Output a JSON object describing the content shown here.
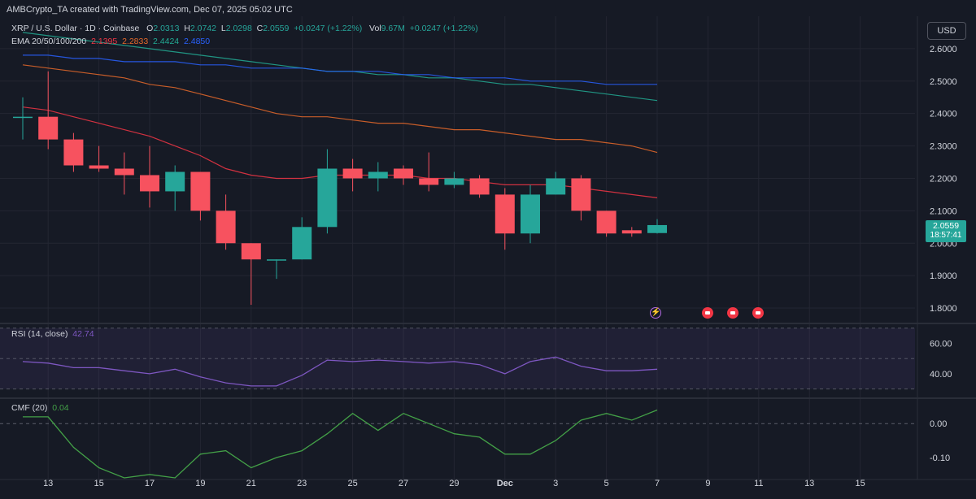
{
  "header": {
    "credit": "AMBCrypto_TA created with TradingView.com, Dec 07, 2025 05:02 UTC",
    "symbol": "XRP / U.S. Dollar · 1D · Coinbase",
    "open_label": "O",
    "open": "2.0313",
    "high_label": "H",
    "high": "2.0742",
    "low_label": "L",
    "low": "2.0298",
    "close_label": "C",
    "close": "2.0559",
    "change": "+0.0247 (+1.22%)",
    "vol_label": "Vol",
    "vol": "9.67M",
    "vol_change": "+0.0247 (+1.22%)",
    "ema_label": "EMA 20/50/100/200",
    "ema20": "2.1395",
    "ema50": "2.2833",
    "ema100": "2.4424",
    "ema200": "2.4850",
    "currency_button": "USD"
  },
  "colors": {
    "up": "#26A69A",
    "down": "#F7525F",
    "ema20": "#F23645",
    "ema50": "#E86A2A",
    "ema100": "#22AB94",
    "ema200": "#2962FF",
    "rsi": "#7E57C2",
    "cmf": "#43A047",
    "background": "#161A25",
    "grid": "#232632"
  },
  "price_tag": {
    "price": "2.0559",
    "countdown": "18:57:41"
  },
  "events": [
    "split-icon",
    "flag-icon",
    "flag-icon",
    "flag-icon"
  ],
  "chart_data": {
    "type": "candlestick",
    "price_axis_ticks": [
      "2.6000",
      "2.5000",
      "2.4000",
      "2.3000",
      "2.2000",
      "2.1000",
      "2.0000",
      "1.9000",
      "1.8000"
    ],
    "ylim": [
      1.76,
      2.7
    ],
    "x_axis_ticks": [
      "13",
      "15",
      "17",
      "19",
      "21",
      "23",
      "25",
      "27",
      "29",
      "Dec",
      "3",
      "5",
      "7",
      "9",
      "11",
      "13",
      "15"
    ],
    "candles": [
      {
        "date": "Nov 12",
        "o": 2.39,
        "h": 2.45,
        "l": 2.32,
        "c": 2.39
      },
      {
        "date": "Nov 13",
        "o": 2.39,
        "h": 2.53,
        "l": 2.29,
        "c": 2.32
      },
      {
        "date": "Nov 14",
        "o": 2.32,
        "h": 2.34,
        "l": 2.22,
        "c": 2.24
      },
      {
        "date": "Nov 15",
        "o": 2.24,
        "h": 2.3,
        "l": 2.22,
        "c": 2.23
      },
      {
        "date": "Nov 16",
        "o": 2.23,
        "h": 2.28,
        "l": 2.15,
        "c": 2.21
      },
      {
        "date": "Nov 17",
        "o": 2.21,
        "h": 2.3,
        "l": 2.11,
        "c": 2.16
      },
      {
        "date": "Nov 18",
        "o": 2.16,
        "h": 2.24,
        "l": 2.1,
        "c": 2.22
      },
      {
        "date": "Nov 19",
        "o": 2.22,
        "h": 2.22,
        "l": 2.07,
        "c": 2.1
      },
      {
        "date": "Nov 20",
        "o": 2.1,
        "h": 2.15,
        "l": 1.98,
        "c": 2.0
      },
      {
        "date": "Nov 21",
        "o": 2.0,
        "h": 2.0,
        "l": 1.81,
        "c": 1.95
      },
      {
        "date": "Nov 22",
        "o": 1.95,
        "h": 1.95,
        "l": 1.89,
        "c": 1.95
      },
      {
        "date": "Nov 23",
        "o": 1.95,
        "h": 2.08,
        "l": 1.95,
        "c": 2.05
      },
      {
        "date": "Nov 24",
        "o": 2.05,
        "h": 2.29,
        "l": 2.03,
        "c": 2.23
      },
      {
        "date": "Nov 25",
        "o": 2.23,
        "h": 2.26,
        "l": 2.16,
        "c": 2.2
      },
      {
        "date": "Nov 26",
        "o": 2.2,
        "h": 2.25,
        "l": 2.16,
        "c": 2.22
      },
      {
        "date": "Nov 27",
        "o": 2.23,
        "h": 2.24,
        "l": 2.18,
        "c": 2.2
      },
      {
        "date": "Nov 28",
        "o": 2.2,
        "h": 2.28,
        "l": 2.16,
        "c": 2.18
      },
      {
        "date": "Nov 29",
        "o": 2.18,
        "h": 2.22,
        "l": 2.17,
        "c": 2.2
      },
      {
        "date": "Nov 30",
        "o": 2.2,
        "h": 2.21,
        "l": 2.14,
        "c": 2.15
      },
      {
        "date": "Dec 1",
        "o": 2.15,
        "h": 2.17,
        "l": 1.98,
        "c": 2.03
      },
      {
        "date": "Dec 2",
        "o": 2.03,
        "h": 2.18,
        "l": 2.0,
        "c": 2.15
      },
      {
        "date": "Dec 3",
        "o": 2.15,
        "h": 2.22,
        "l": 2.15,
        "c": 2.2
      },
      {
        "date": "Dec 4",
        "o": 2.2,
        "h": 2.21,
        "l": 2.07,
        "c": 2.1
      },
      {
        "date": "Dec 5",
        "o": 2.1,
        "h": 2.1,
        "l": 2.02,
        "c": 2.03
      },
      {
        "date": "Dec 6",
        "o": 2.04,
        "h": 2.05,
        "l": 2.02,
        "c": 2.03
      },
      {
        "date": "Dec 7",
        "o": 2.0313,
        "h": 2.0742,
        "l": 2.0298,
        "c": 2.0559
      }
    ],
    "ema": {
      "ema20": [
        2.42,
        2.41,
        2.39,
        2.37,
        2.35,
        2.33,
        2.3,
        2.27,
        2.23,
        2.21,
        2.2,
        2.2,
        2.21,
        2.21,
        2.21,
        2.21,
        2.2,
        2.2,
        2.19,
        2.18,
        2.18,
        2.18,
        2.17,
        2.16,
        2.15,
        2.14
      ],
      "ema50": [
        2.55,
        2.54,
        2.53,
        2.52,
        2.51,
        2.49,
        2.48,
        2.46,
        2.44,
        2.42,
        2.4,
        2.39,
        2.39,
        2.38,
        2.37,
        2.37,
        2.36,
        2.35,
        2.35,
        2.34,
        2.33,
        2.32,
        2.32,
        2.31,
        2.3,
        2.28
      ],
      "ema100": [
        2.65,
        2.64,
        2.63,
        2.62,
        2.61,
        2.6,
        2.59,
        2.58,
        2.57,
        2.56,
        2.55,
        2.54,
        2.53,
        2.53,
        2.52,
        2.52,
        2.51,
        2.51,
        2.5,
        2.49,
        2.49,
        2.48,
        2.47,
        2.46,
        2.45,
        2.44
      ],
      "ema200": [
        2.58,
        2.58,
        2.57,
        2.57,
        2.56,
        2.56,
        2.56,
        2.55,
        2.55,
        2.54,
        2.54,
        2.54,
        2.53,
        2.53,
        2.53,
        2.52,
        2.52,
        2.51,
        2.51,
        2.51,
        2.5,
        2.5,
        2.5,
        2.49,
        2.49,
        2.49
      ]
    },
    "rsi": {
      "label": "RSI (14, close)",
      "value": "42.74",
      "ticks": [
        "60.00",
        "40.00"
      ],
      "ylim": [
        25,
        72
      ],
      "bands": [
        70,
        50,
        30
      ],
      "values": [
        48,
        47,
        44,
        44,
        42,
        40,
        43,
        38,
        34,
        32,
        32,
        39,
        49,
        48,
        49,
        48,
        47,
        48,
        46,
        40,
        48,
        51,
        45,
        42,
        42,
        43
      ]
    },
    "cmf": {
      "label": "CMF (20)",
      "value": "0.04",
      "ticks": [
        "0.00",
        "-0.10"
      ],
      "ylim": [
        -0.16,
        0.07
      ],
      "values": [
        0.02,
        0.02,
        -0.07,
        -0.13,
        -0.16,
        -0.15,
        -0.16,
        -0.09,
        -0.08,
        -0.13,
        -0.1,
        -0.08,
        -0.03,
        0.03,
        -0.02,
        0.03,
        0.0,
        -0.03,
        -0.04,
        -0.09,
        -0.09,
        -0.05,
        0.01,
        0.03,
        0.01,
        0.04
      ]
    }
  }
}
